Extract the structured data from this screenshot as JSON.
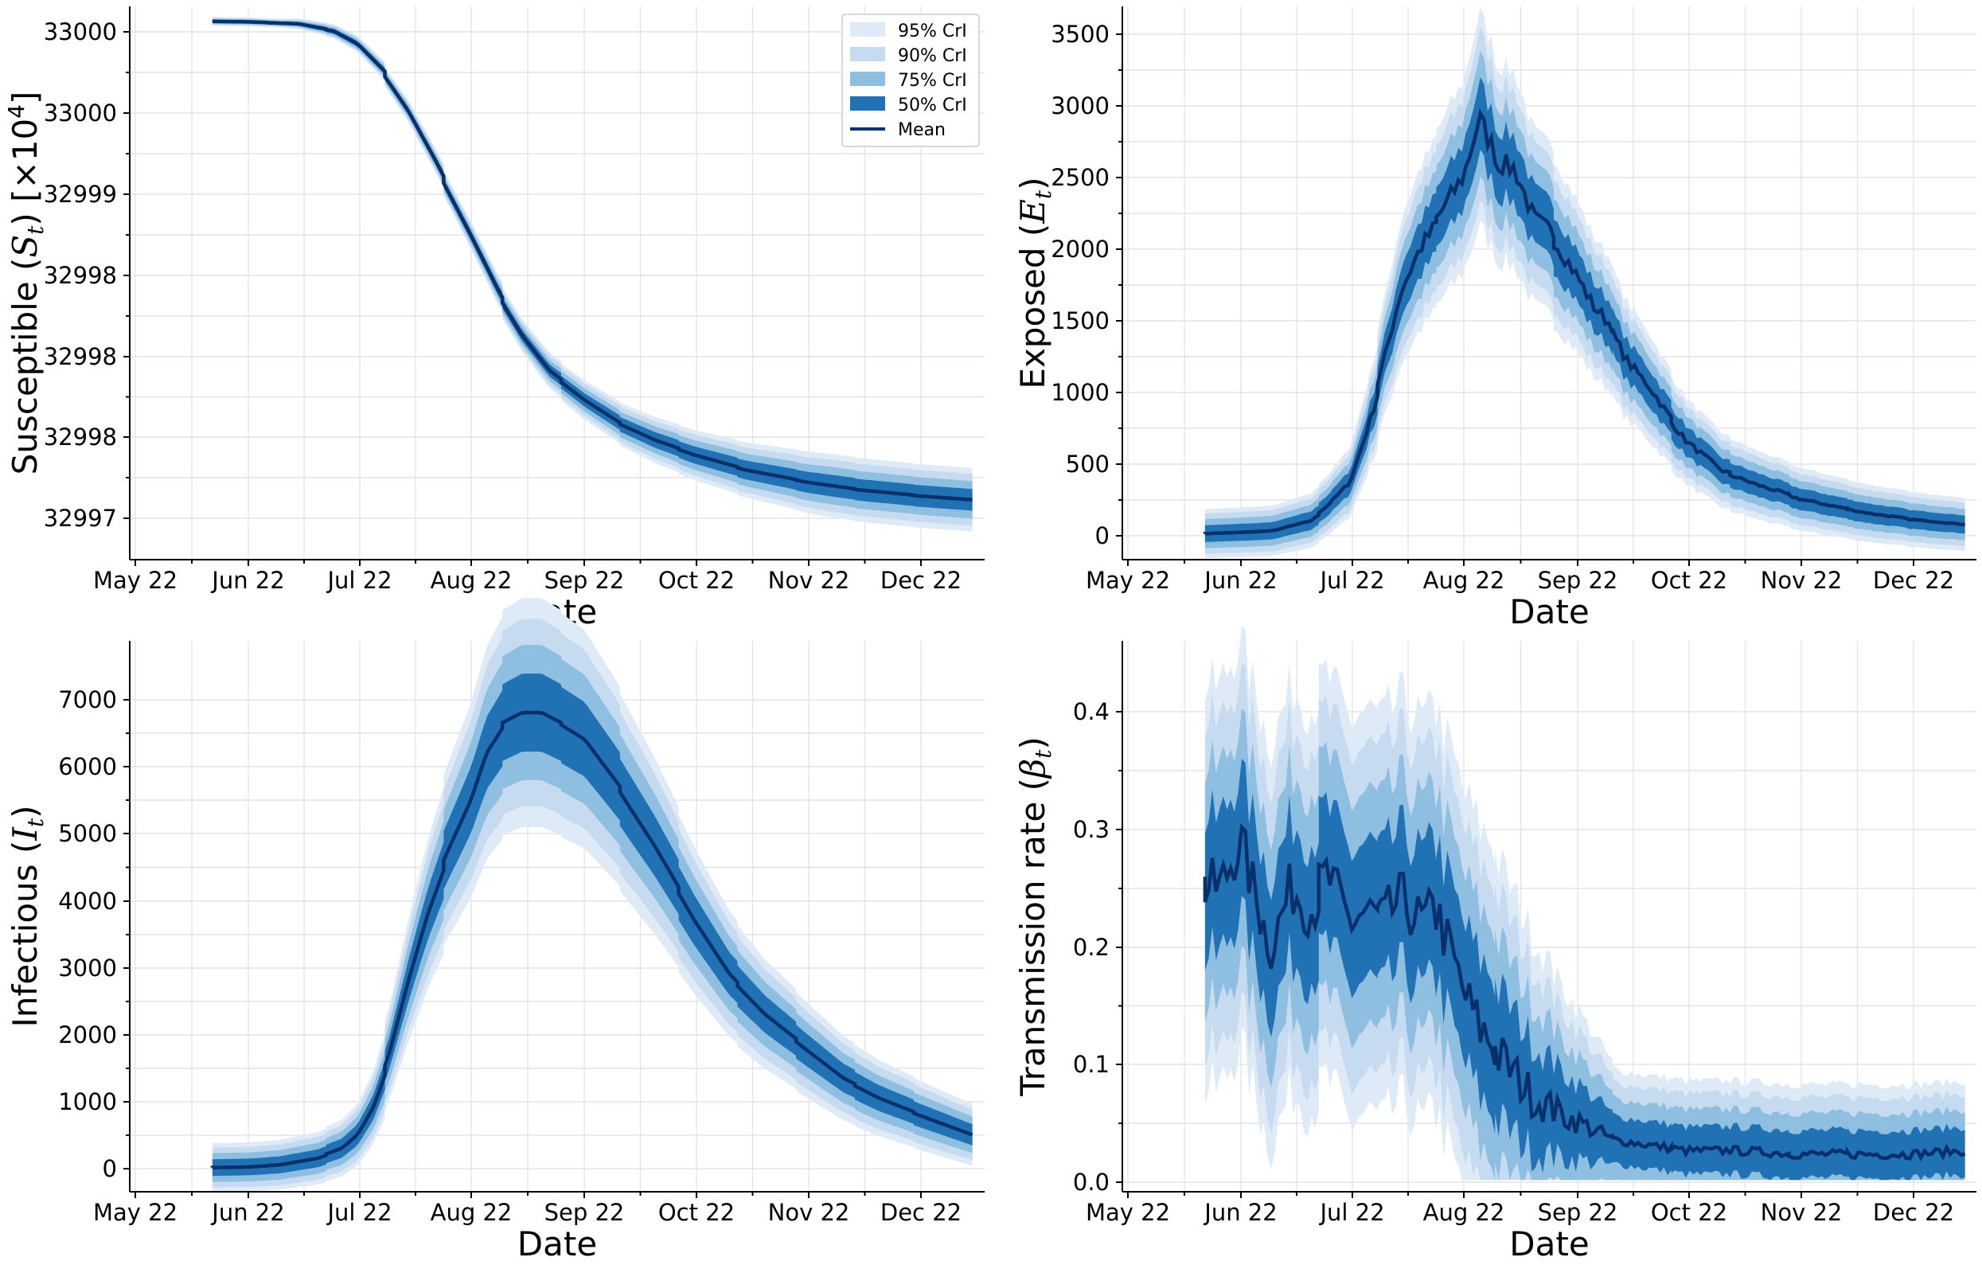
{
  "figure": {
    "colors": {
      "ci95": "#deebf7",
      "ci90": "#c6dbef",
      "ci75": "#8fbfe0",
      "ci50": "#2171b5",
      "mean": "#08306b"
    },
    "legend": {
      "entries": [
        "95% CrI",
        "90% CrI",
        "75% CrI",
        "50% CrI",
        "Mean"
      ]
    }
  },
  "chart_data": [
    {
      "type": "area",
      "panel": "top-left",
      "xlabel": "Date",
      "ylabel_text": "Susceptible (",
      "ylabel_symbol": "S",
      "ylabel_sub": "t",
      "ylabel_suffix": ") [×10",
      "ylabel_sup": "4",
      "ylabel_end": "]",
      "x_ticks": [
        "May 22",
        "Jun 22",
        "Jul 22",
        "Aug 22",
        "Sep 22",
        "Oct 22",
        "Nov 22",
        "Dec 22"
      ],
      "y_ticks": [
        "33000",
        "33000",
        "32999",
        "32998",
        "32998",
        "32998",
        "32997"
      ],
      "ylim": [
        -0.08,
        1.03
      ],
      "legend": "top-right",
      "grid": true,
      "series": [
        {
          "x": [
            "2022-05-22",
            "2022-06-01",
            "2022-06-15",
            "2022-06-25",
            "2022-07-01",
            "2022-07-08",
            "2022-07-15",
            "2022-07-22",
            "2022-08-01",
            "2022-08-08",
            "2022-08-15",
            "2022-08-22",
            "2022-09-01",
            "2022-09-10",
            "2022-09-20",
            "2022-10-01",
            "2022-10-15",
            "2022-11-01",
            "2022-11-15",
            "2022-12-01",
            "2022-12-15"
          ],
          "mean": [
            1.0,
            0.999,
            0.995,
            0.98,
            0.955,
            0.9,
            0.82,
            0.72,
            0.57,
            0.46,
            0.37,
            0.3,
            0.24,
            0.195,
            0.16,
            0.13,
            0.1,
            0.075,
            0.06,
            0.048,
            0.04
          ]
        }
      ]
    },
    {
      "type": "area",
      "panel": "top-right",
      "xlabel": "Date",
      "ylabel_text": "Exposed (",
      "ylabel_symbol": "E",
      "ylabel_sub": "t",
      "ylabel_end": ")",
      "x_ticks": [
        "May 22",
        "Jun 22",
        "Jul 22",
        "Aug 22",
        "Sep 22",
        "Oct 22",
        "Nov 22",
        "Dec 22"
      ],
      "y_ticks": [
        0,
        500,
        1000,
        1500,
        2000,
        2500,
        3000,
        3500
      ],
      "ylim": [
        -170,
        3680
      ],
      "grid": true,
      "series": [
        {
          "x": [
            "2022-05-22",
            "2022-06-01",
            "2022-06-10",
            "2022-06-20",
            "2022-06-25",
            "2022-07-01",
            "2022-07-05",
            "2022-07-10",
            "2022-07-15",
            "2022-07-20",
            "2022-07-25",
            "2022-08-01",
            "2022-08-05",
            "2022-08-10",
            "2022-08-15",
            "2022-08-20",
            "2022-08-25",
            "2022-09-01",
            "2022-09-05",
            "2022-09-10",
            "2022-09-15",
            "2022-09-20",
            "2022-09-25",
            "2022-10-01",
            "2022-10-10",
            "2022-10-20",
            "2022-11-01",
            "2022-11-10",
            "2022-11-20",
            "2022-12-01",
            "2022-12-15"
          ],
          "mean": [
            10,
            20,
            30,
            100,
            200,
            370,
            700,
            1150,
            1700,
            2000,
            2200,
            2500,
            2900,
            2600,
            2550,
            2200,
            2100,
            1800,
            1600,
            1450,
            1200,
            1050,
            850,
            650,
            450,
            350,
            250,
            200,
            150,
            110,
            75
          ]
        }
      ]
    },
    {
      "type": "area",
      "panel": "bottom-left",
      "xlabel": "Date",
      "ylabel_text": "Infectious (",
      "ylabel_symbol": "I",
      "ylabel_sub": "t",
      "ylabel_end": ")",
      "x_ticks": [
        "May 22",
        "Jun 22",
        "Jul 22",
        "Aug 22",
        "Sep 22",
        "Oct 22",
        "Nov 22",
        "Dec 22"
      ],
      "y_ticks": [
        0,
        1000,
        2000,
        3000,
        4000,
        5000,
        6000,
        7000
      ],
      "ylim": [
        -350,
        7870
      ],
      "grid": true,
      "series": [
        {
          "x": [
            "2022-05-22",
            "2022-06-01",
            "2022-06-10",
            "2022-06-20",
            "2022-06-27",
            "2022-07-01",
            "2022-07-05",
            "2022-07-10",
            "2022-07-15",
            "2022-07-20",
            "2022-07-25",
            "2022-08-01",
            "2022-08-05",
            "2022-08-10",
            "2022-08-15",
            "2022-08-20",
            "2022-08-25",
            "2022-09-01",
            "2022-09-10",
            "2022-09-20",
            "2022-10-01",
            "2022-10-10",
            "2022-10-20",
            "2022-11-01",
            "2022-11-10",
            "2022-11-20",
            "2022-12-01",
            "2022-12-15"
          ],
          "mean": [
            10,
            20,
            50,
            150,
            300,
            500,
            900,
            1700,
            2800,
            3800,
            4600,
            5500,
            6200,
            6650,
            6800,
            6800,
            6650,
            6400,
            5700,
            4800,
            3700,
            2900,
            2300,
            1750,
            1350,
            1050,
            800,
            500
          ]
        }
      ]
    },
    {
      "type": "area",
      "panel": "bottom-right",
      "xlabel": "Date",
      "ylabel_text": "Transmission rate (",
      "ylabel_symbol": "β",
      "ylabel_sub": "t",
      "ylabel_end": ")",
      "x_ticks": [
        "May 22",
        "Jun 22",
        "Jul 22",
        "Aug 22",
        "Sep 22",
        "Oct 22",
        "Nov 22",
        "Dec 22"
      ],
      "y_ticks": [
        0.0,
        0.1,
        0.2,
        0.3,
        0.4
      ],
      "y_tick_labels": [
        "0.0",
        "0.1",
        "0.2",
        "0.3",
        "0.4"
      ],
      "ylim": [
        -0.01,
        0.46
      ],
      "grid": true,
      "series": [
        {
          "x": [
            "2022-05-22",
            "2022-05-27",
            "2022-06-01",
            "2022-06-05",
            "2022-06-10",
            "2022-06-15",
            "2022-06-20",
            "2022-06-25",
            "2022-07-01",
            "2022-07-05",
            "2022-07-10",
            "2022-07-15",
            "2022-07-20",
            "2022-07-25",
            "2022-08-01",
            "2022-08-05",
            "2022-08-10",
            "2022-08-15",
            "2022-08-20",
            "2022-08-25",
            "2022-09-01",
            "2022-09-10",
            "2022-09-20",
            "2022-10-01",
            "2022-10-15",
            "2022-11-01",
            "2022-11-15",
            "2022-12-01",
            "2022-12-15"
          ],
          "mean": [
            0.25,
            0.25,
            0.29,
            0.24,
            0.2,
            0.25,
            0.23,
            0.26,
            0.22,
            0.23,
            0.22,
            0.24,
            0.22,
            0.23,
            0.16,
            0.13,
            0.11,
            0.09,
            0.07,
            0.06,
            0.05,
            0.035,
            0.03,
            0.025,
            0.025,
            0.022,
            0.022,
            0.022,
            0.025
          ],
          "noise": true
        }
      ]
    }
  ]
}
